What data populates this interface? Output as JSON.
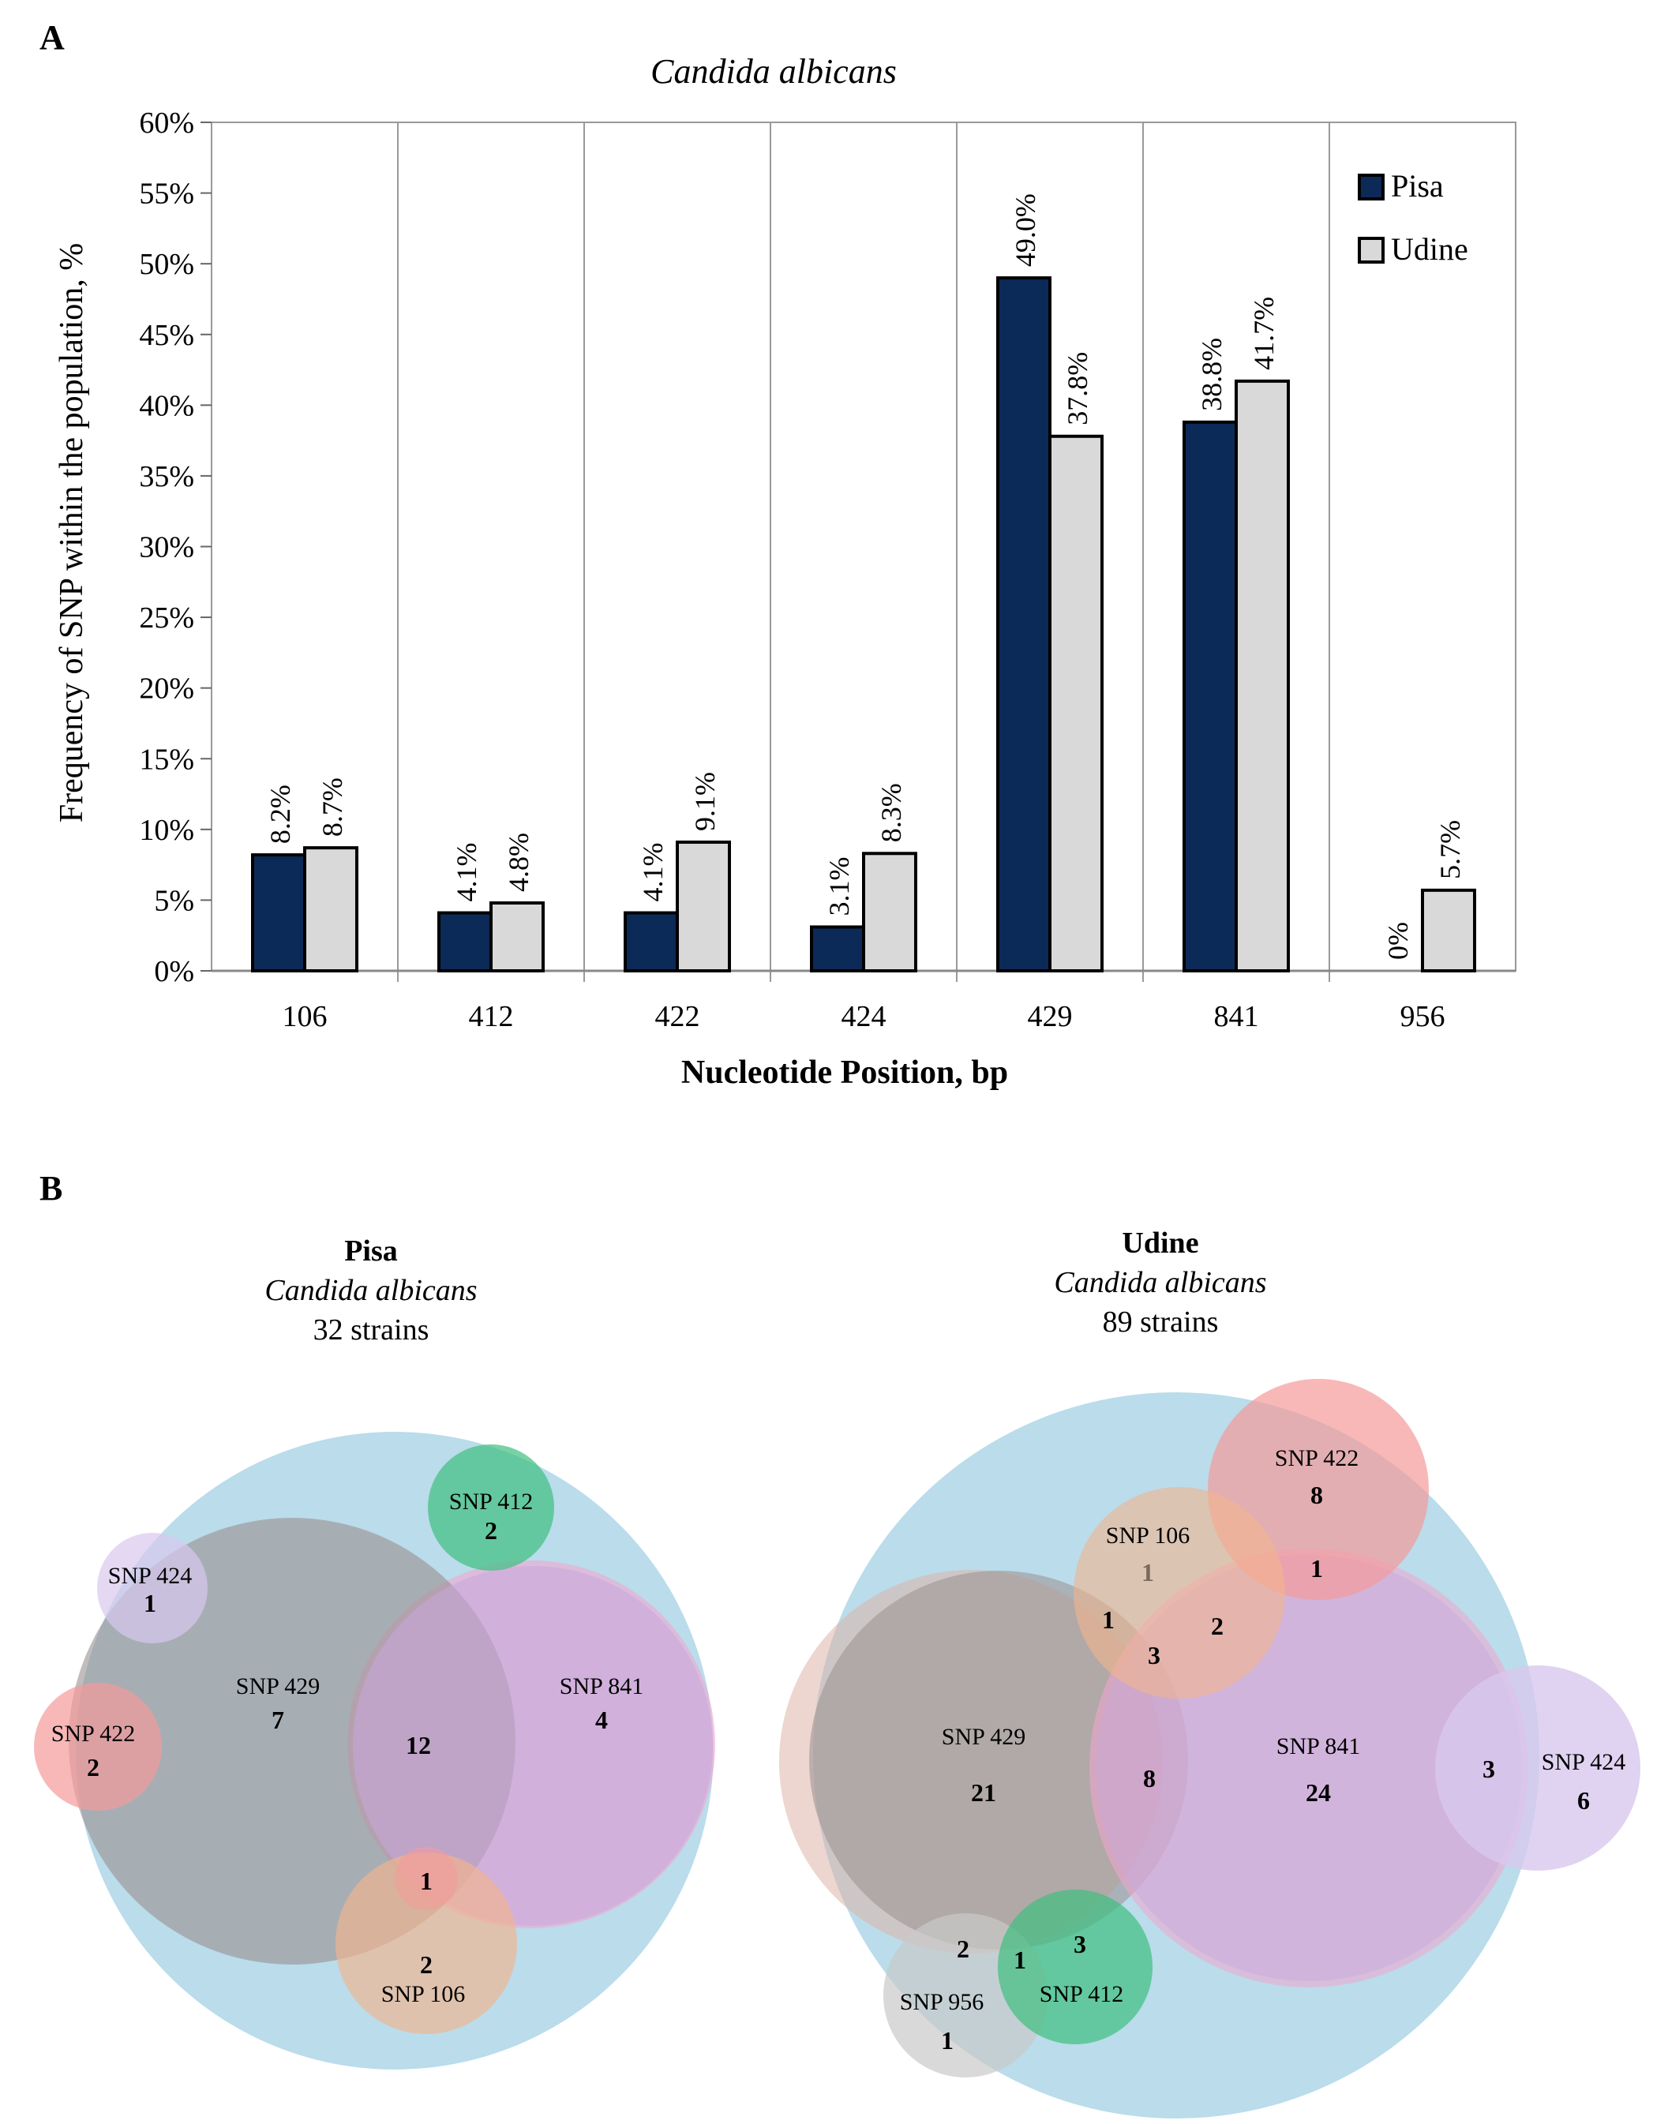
{
  "panel_a": {
    "label": "A"
  },
  "panel_b": {
    "label": "B"
  },
  "chart_data": {
    "type": "bar",
    "title": "Candida albicans",
    "xlabel": "Nucleotide Position, bp",
    "ylabel": "Frequency of SNP within the population, %",
    "categories": [
      "106",
      "412",
      "422",
      "424",
      "429",
      "841",
      "956"
    ],
    "ylim": [
      0,
      60
    ],
    "yticks": [
      0,
      5,
      10,
      15,
      20,
      25,
      30,
      35,
      40,
      45,
      50,
      55,
      60
    ],
    "ytick_suffix": "%",
    "series": [
      {
        "name": "Pisa",
        "color": "#0c2a57",
        "values": [
          8.2,
          4.1,
          4.1,
          3.1,
          49.0,
          38.8,
          0
        ],
        "labels": [
          "8.2%",
          "4.1%",
          "4.1%",
          "3.1%",
          "49.0%",
          "38.8%",
          "0%"
        ]
      },
      {
        "name": "Udine",
        "color": "#d9d9d9",
        "values": [
          8.7,
          4.8,
          9.1,
          8.3,
          37.8,
          41.7,
          5.7
        ],
        "labels": [
          "8.7%",
          "4.8%",
          "9.1%",
          "8.3%",
          "37.8%",
          "41.7%",
          "5.7%"
        ]
      }
    ],
    "legend": [
      "Pisa",
      "Udine"
    ],
    "legend_position": "top-right"
  },
  "venn": {
    "pisa": {
      "title": "Pisa",
      "species": "Candida albicans",
      "strains": "32 strains",
      "sets": {
        "snp424": "SNP 424",
        "snp412": "SNP 412",
        "snp429": "SNP 429",
        "snp841": "SNP 841",
        "snp422": "SNP 422",
        "snp106": "SNP 106"
      },
      "counts": {
        "snp424": "1",
        "snp412": "2",
        "snp429": "7",
        "snp841": "4",
        "snp422": "2",
        "snp429_841": "12",
        "snp429_841_106": "1",
        "snp106": "2"
      }
    },
    "udine": {
      "title": "Udine",
      "species": "Candida albicans",
      "strains": "89 strains",
      "sets": {
        "snp422": "SNP 422",
        "snp106": "SNP 106",
        "snp429": "SNP 429",
        "snp841": "SNP 841",
        "snp424": "SNP 424",
        "snp956": "SNP 956",
        "snp412": "SNP 412"
      },
      "counts": {
        "snp422": "8",
        "snp422_841": "1",
        "snp106": "1",
        "snp106_429": "1",
        "snp106_841": "2",
        "snp106_429_841": "3",
        "snp429": "21",
        "snp429_841": "8",
        "snp841": "24",
        "snp841_424": "3",
        "snp424": "6",
        "snp956_429": "2",
        "snp956_429_412": "1",
        "snp412_429": "3",
        "snp956": "1"
      }
    }
  },
  "colors": {
    "pisa_bar": "#0c2a57",
    "udine_bar": "#d9d9d9",
    "venn_blue": "#a9d3e6",
    "venn_gray": "#9a9090",
    "venn_violet": "#c8a8dc",
    "venn_pink": "#f59a9a",
    "venn_green": "#3fbf7f",
    "venn_orange": "#f2b48c",
    "venn_lavender": "#d8c8ee",
    "venn_lightgray": "#c9c9c9",
    "venn_tan": "#dcb4a8"
  }
}
